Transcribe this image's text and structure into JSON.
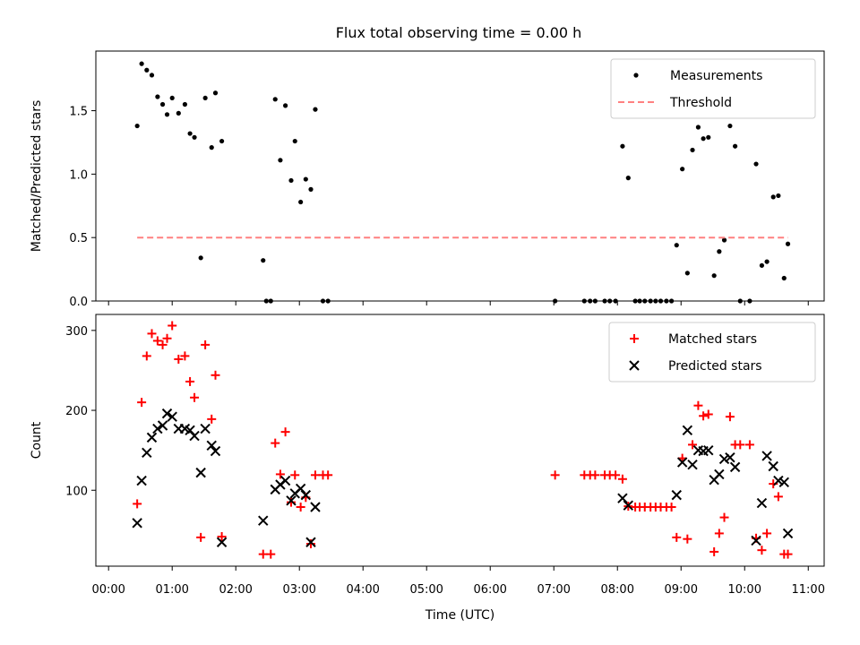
{
  "chart_data": [
    {
      "type": "scatter",
      "title": "Flux total observing time = 0.00 h",
      "xlabel": "",
      "ylabel": "Matched/Predicted stars",
      "xlim": [
        -0.2,
        11.25
      ],
      "ylim": [
        0,
        1.97
      ],
      "yticks": [
        0.0,
        0.5,
        1.0,
        1.5
      ],
      "ytick_labels": [
        "0.0",
        "0.5",
        "1.0",
        "1.5"
      ],
      "legend_position": "top-right",
      "series": [
        {
          "name": "Measurements",
          "marker": "dot",
          "color": "#000000",
          "points": [
            [
              0.45,
              1.38
            ],
            [
              0.52,
              1.87
            ],
            [
              0.6,
              1.82
            ],
            [
              0.68,
              1.78
            ],
            [
              0.77,
              1.61
            ],
            [
              0.85,
              1.55
            ],
            [
              0.92,
              1.47
            ],
            [
              1.0,
              1.6
            ],
            [
              1.1,
              1.48
            ],
            [
              1.2,
              1.55
            ],
            [
              1.28,
              1.32
            ],
            [
              1.35,
              1.29
            ],
            [
              1.45,
              0.34
            ],
            [
              1.52,
              1.6
            ],
            [
              1.62,
              1.21
            ],
            [
              1.68,
              1.64
            ],
            [
              1.78,
              1.26
            ],
            [
              2.43,
              0.32
            ],
            [
              2.48,
              0.0
            ],
            [
              2.55,
              0.0
            ],
            [
              2.62,
              1.59
            ],
            [
              2.7,
              1.11
            ],
            [
              2.78,
              1.54
            ],
            [
              2.87,
              0.95
            ],
            [
              2.93,
              1.26
            ],
            [
              3.02,
              0.78
            ],
            [
              3.1,
              0.96
            ],
            [
              3.18,
              0.88
            ],
            [
              3.25,
              1.51
            ],
            [
              3.37,
              0.0
            ],
            [
              3.45,
              0.0
            ],
            [
              7.02,
              0.0
            ],
            [
              7.48,
              0.0
            ],
            [
              7.57,
              0.0
            ],
            [
              7.65,
              0.0
            ],
            [
              7.8,
              0.0
            ],
            [
              7.88,
              0.0
            ],
            [
              7.97,
              0.0
            ],
            [
              8.08,
              1.22
            ],
            [
              8.17,
              0.97
            ],
            [
              8.28,
              0.0
            ],
            [
              8.35,
              0.0
            ],
            [
              8.43,
              0.0
            ],
            [
              8.52,
              0.0
            ],
            [
              8.6,
              0.0
            ],
            [
              8.68,
              0.0
            ],
            [
              8.77,
              0.0
            ],
            [
              8.85,
              0.0
            ],
            [
              8.93,
              0.44
            ],
            [
              9.02,
              1.04
            ],
            [
              9.1,
              0.22
            ],
            [
              9.18,
              1.19
            ],
            [
              9.27,
              1.37
            ],
            [
              9.35,
              1.28
            ],
            [
              9.43,
              1.29
            ],
            [
              9.52,
              0.2
            ],
            [
              9.6,
              0.39
            ],
            [
              9.68,
              0.48
            ],
            [
              9.77,
              1.38
            ],
            [
              9.85,
              1.22
            ],
            [
              9.93,
              0.0
            ],
            [
              10.08,
              0.0
            ],
            [
              10.18,
              1.08
            ],
            [
              10.27,
              0.28
            ],
            [
              10.35,
              0.31
            ],
            [
              10.45,
              0.82
            ],
            [
              10.53,
              0.83
            ],
            [
              10.62,
              0.18
            ],
            [
              10.68,
              0.45
            ]
          ]
        },
        {
          "name": "Threshold",
          "line_style": "dashed",
          "color": "#ff8080",
          "points": [
            [
              0.45,
              0.5
            ],
            [
              10.68,
              0.5
            ]
          ]
        }
      ]
    },
    {
      "type": "scatter",
      "title": "",
      "xlabel": "Time (UTC)",
      "ylabel": "Count",
      "xlim": [
        -0.2,
        11.25
      ],
      "ylim": [
        5,
        320
      ],
      "yticks": [
        100,
        200,
        300
      ],
      "ytick_labels": [
        "100",
        "200",
        "300"
      ],
      "xticks": [
        0,
        1,
        2,
        3,
        4,
        5,
        6,
        7,
        8,
        9,
        10,
        11
      ],
      "xtick_labels": [
        "00:00",
        "01:00",
        "02:00",
        "03:00",
        "04:00",
        "05:00",
        "06:00",
        "07:00",
        "08:00",
        "09:00",
        "10:00",
        "11:00"
      ],
      "legend_position": "top-right",
      "series": [
        {
          "name": "Matched stars",
          "marker": "plus",
          "color": "#ff0000",
          "points": [
            [
              0.45,
              83
            ],
            [
              0.52,
              210
            ],
            [
              0.6,
              268
            ],
            [
              0.68,
              296
            ],
            [
              0.77,
              287
            ],
            [
              0.85,
              282
            ],
            [
              0.92,
              290
            ],
            [
              1.0,
              306
            ],
            [
              1.1,
              264
            ],
            [
              1.2,
              268
            ],
            [
              1.28,
              236
            ],
            [
              1.35,
              216
            ],
            [
              1.45,
              41
            ],
            [
              1.52,
              282
            ],
            [
              1.62,
              189
            ],
            [
              1.68,
              244
            ],
            [
              1.78,
              42
            ],
            [
              2.43,
              20
            ],
            [
              2.55,
              20
            ],
            [
              2.62,
              159
            ],
            [
              2.7,
              120
            ],
            [
              2.78,
              173
            ],
            [
              2.87,
              85
            ],
            [
              2.93,
              119
            ],
            [
              3.02,
              79
            ],
            [
              3.1,
              91
            ],
            [
              3.18,
              33
            ],
            [
              3.25,
              119
            ],
            [
              3.37,
              119
            ],
            [
              3.45,
              119
            ],
            [
              7.02,
              119
            ],
            [
              7.48,
              119
            ],
            [
              7.57,
              119
            ],
            [
              7.65,
              119
            ],
            [
              7.8,
              119
            ],
            [
              7.88,
              119
            ],
            [
              7.97,
              119
            ],
            [
              8.08,
              114
            ],
            [
              8.17,
              80
            ],
            [
              8.28,
              79
            ],
            [
              8.35,
              79
            ],
            [
              8.43,
              79
            ],
            [
              8.52,
              79
            ],
            [
              8.6,
              79
            ],
            [
              8.68,
              79
            ],
            [
              8.77,
              79
            ],
            [
              8.85,
              79
            ],
            [
              8.93,
              41
            ],
            [
              9.02,
              140
            ],
            [
              9.1,
              39
            ],
            [
              9.18,
              157
            ],
            [
              9.27,
              206
            ],
            [
              9.35,
              193
            ],
            [
              9.43,
              195
            ],
            [
              9.52,
              23
            ],
            [
              9.6,
              46
            ],
            [
              9.68,
              66
            ],
            [
              9.77,
              192
            ],
            [
              9.85,
              157
            ],
            [
              9.93,
              157
            ],
            [
              10.08,
              157
            ],
            [
              10.18,
              40
            ],
            [
              10.27,
              25
            ],
            [
              10.35,
              46
            ],
            [
              10.45,
              108
            ],
            [
              10.53,
              92
            ],
            [
              10.62,
              20
            ],
            [
              10.68,
              20
            ]
          ]
        },
        {
          "name": "Predicted stars",
          "marker": "x",
          "color": "#000000",
          "points": [
            [
              0.45,
              59
            ],
            [
              0.52,
              112
            ],
            [
              0.6,
              147
            ],
            [
              0.68,
              166
            ],
            [
              0.77,
              177
            ],
            [
              0.85,
              181
            ],
            [
              0.92,
              196
            ],
            [
              1.0,
              192
            ],
            [
              1.1,
              177
            ],
            [
              1.2,
              177
            ],
            [
              1.28,
              175
            ],
            [
              1.35,
              168
            ],
            [
              1.45,
              122
            ],
            [
              1.52,
              177
            ],
            [
              1.62,
              156
            ],
            [
              1.68,
              149
            ],
            [
              1.78,
              35
            ],
            [
              2.43,
              62
            ],
            [
              2.62,
              101
            ],
            [
              2.7,
              107
            ],
            [
              2.78,
              112
            ],
            [
              2.87,
              87
            ],
            [
              2.93,
              96
            ],
            [
              3.02,
              102
            ],
            [
              3.1,
              94
            ],
            [
              3.18,
              35
            ],
            [
              3.25,
              79
            ],
            [
              8.08,
              90
            ],
            [
              8.17,
              81
            ],
            [
              8.93,
              94
            ],
            [
              9.02,
              135
            ],
            [
              9.1,
              175
            ],
            [
              9.18,
              132
            ],
            [
              9.27,
              150
            ],
            [
              9.35,
              149
            ],
            [
              9.43,
              150
            ],
            [
              9.52,
              113
            ],
            [
              9.6,
              120
            ],
            [
              9.68,
              139
            ],
            [
              9.77,
              141
            ],
            [
              9.85,
              129
            ],
            [
              10.18,
              37
            ],
            [
              10.27,
              84
            ],
            [
              10.35,
              143
            ],
            [
              10.45,
              130
            ],
            [
              10.53,
              112
            ],
            [
              10.62,
              110
            ],
            [
              10.68,
              46
            ]
          ]
        }
      ]
    }
  ]
}
